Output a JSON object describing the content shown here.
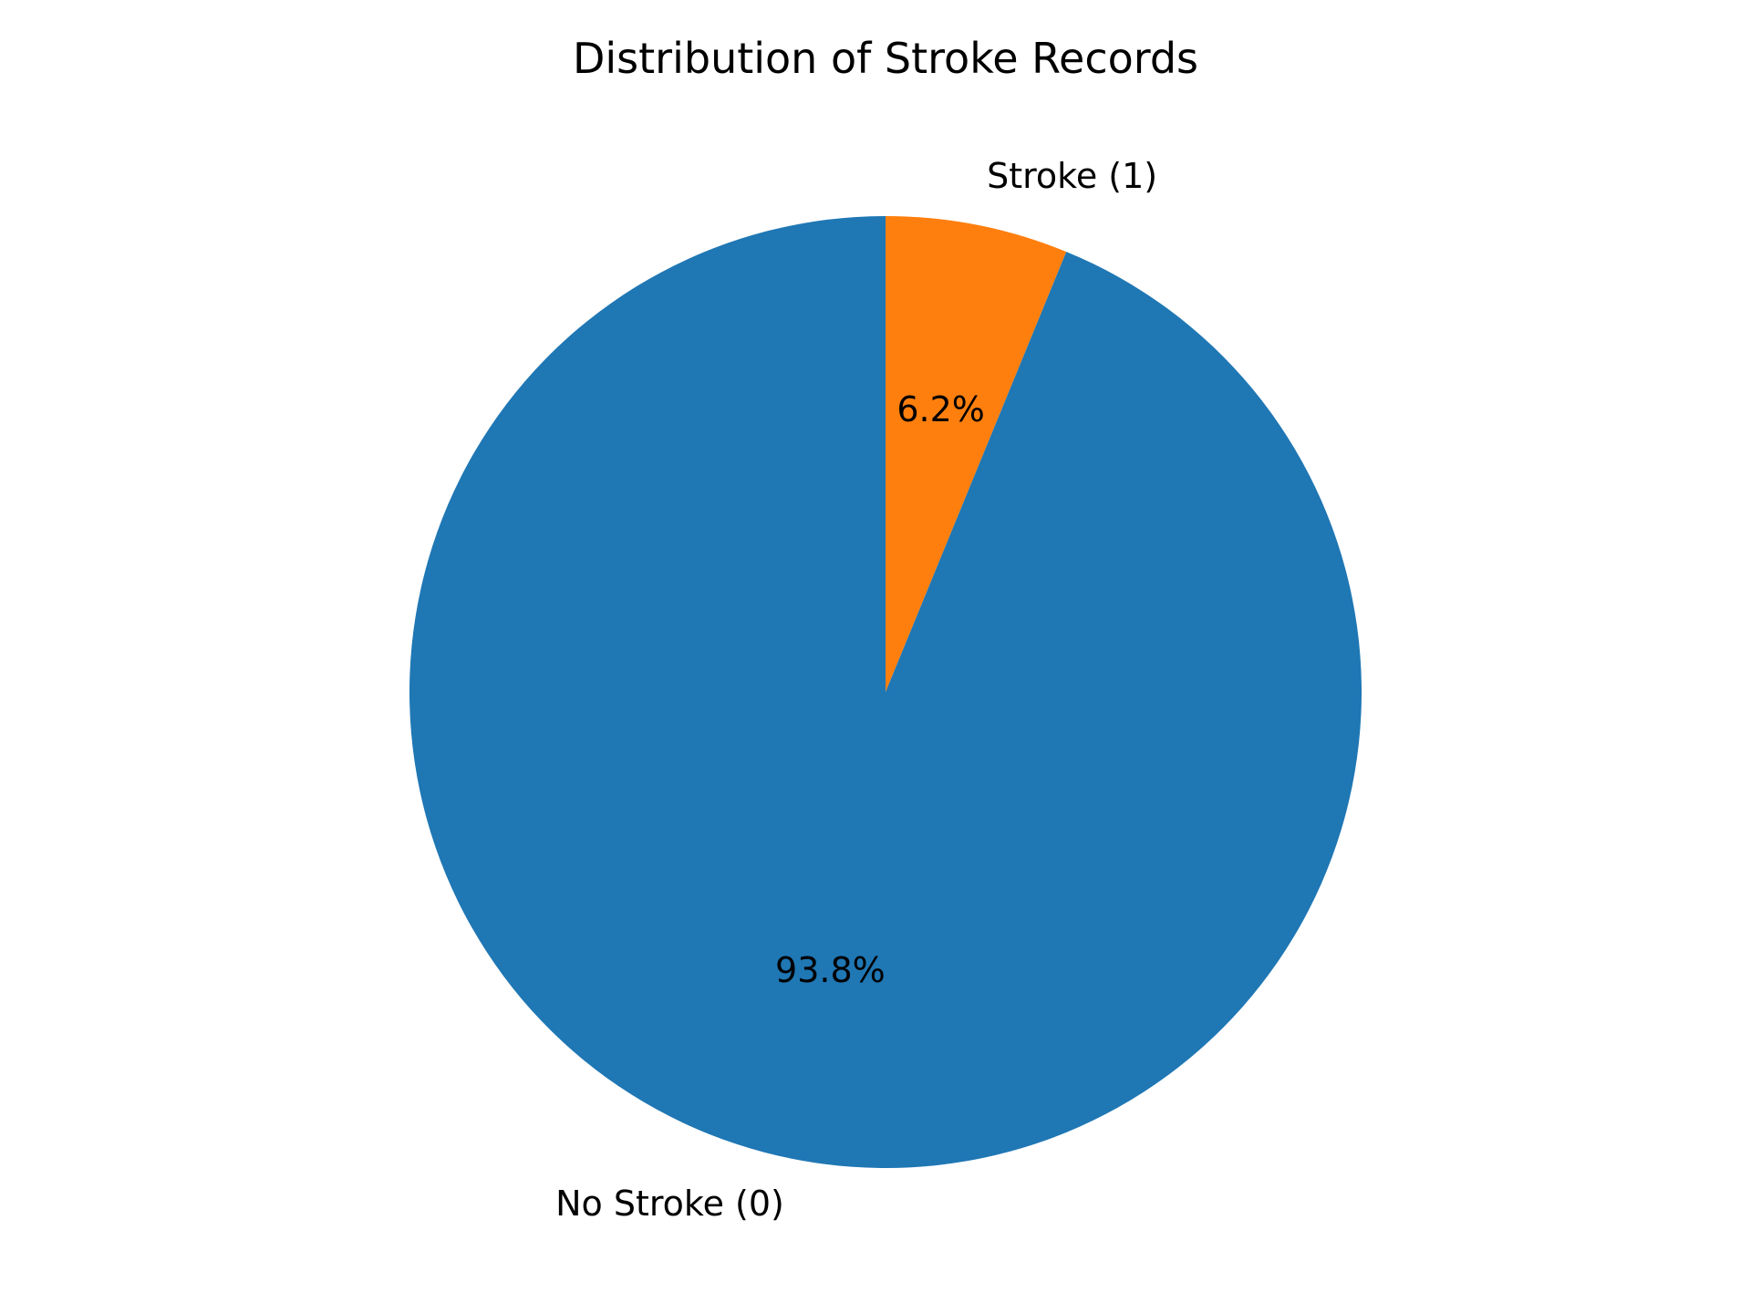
{
  "chart_data": {
    "type": "pie",
    "title": "Distribution of Stroke Records",
    "slices": [
      {
        "label": "Stroke (1)",
        "value": 6.2,
        "pct_label": "6.2%",
        "color": "#ff7f0e"
      },
      {
        "label": "No Stroke (0)",
        "value": 93.8,
        "pct_label": "93.8%",
        "color": "#1f77b4"
      }
    ],
    "start_angle_deg": 90,
    "direction": "clockwise",
    "legend": "none"
  }
}
